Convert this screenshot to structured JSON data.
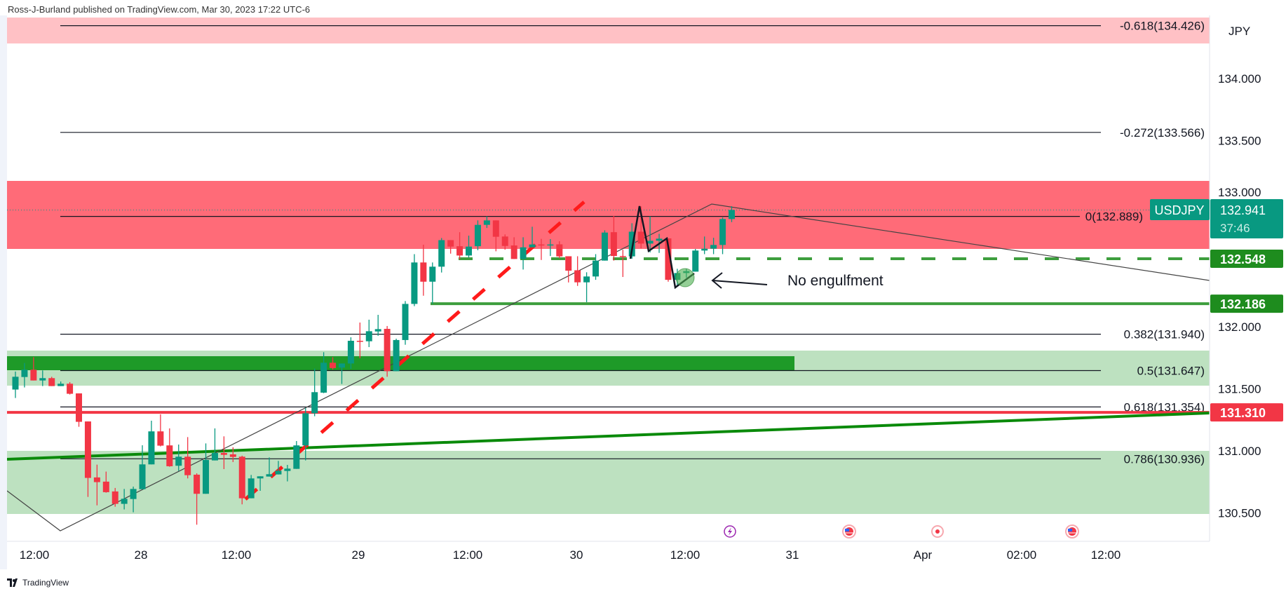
{
  "header": {
    "text": "Ross-J-Burland published on TradingView.com, Mar 30, 2023 17:22 UTC-6"
  },
  "footer": {
    "brand": "TradingView"
  },
  "colors": {
    "up": "#089981",
    "down": "#f23645",
    "resistance_zone": "#ff6b78",
    "top_zone": "#ffc1c5",
    "support_zone": "#bde1c0",
    "support_dark": "#1e9a28",
    "level_green": "#3d9e3d",
    "red_level": "#f23645"
  },
  "chart_data": {
    "type": "candlestick",
    "symbol": "USDJPY",
    "currency_label": "JPY",
    "last_price": "132.941",
    "countdown": "37:46",
    "ylim": [
      130.3,
      134.55
    ],
    "y_ticks": [
      "134.000",
      "133.500",
      "133.000",
      "132.000",
      "131.500",
      "131.000",
      "130.500"
    ],
    "y_tick_values": [
      134.0,
      133.5,
      133.0,
      132.0,
      131.5,
      131.0,
      130.5
    ],
    "x_ticks": [
      "12:00",
      "28",
      "12:00",
      "29",
      "12:00",
      "30",
      "12:00",
      "31",
      "Apr",
      "02:00",
      "12:00"
    ],
    "price_labels": [
      {
        "value": "132.548",
        "price": 132.548,
        "color": "#1e8c1e"
      },
      {
        "value": "132.186",
        "price": 132.186,
        "color": "#1e8c1e"
      },
      {
        "value": "131.310",
        "price": 131.31,
        "color": "#f23645"
      }
    ],
    "fib_levels": [
      {
        "label": "-0.618(134.426)",
        "price": 134.426
      },
      {
        "label": "-0.272(133.566)",
        "price": 133.566
      },
      {
        "label": "0(132.889)",
        "price": 132.889
      },
      {
        "label": "0.382(131.940)",
        "price": 131.94
      },
      {
        "label": "0.5(131.647)",
        "price": 131.647
      },
      {
        "label": "0.618(131.354)",
        "price": 131.354
      },
      {
        "label": "0.786(130.936)",
        "price": 130.936
      }
    ],
    "annotation": "No engulfment",
    "candles_ohlc": [
      [
        131.494,
        131.639,
        131.426,
        131.597
      ],
      [
        131.595,
        131.708,
        131.511,
        131.654
      ],
      [
        131.654,
        131.755,
        131.567,
        131.567
      ],
      [
        131.567,
        131.648,
        131.522,
        131.586
      ],
      [
        131.586,
        131.597,
        131.522,
        131.522
      ],
      [
        131.522,
        131.559,
        131.522,
        131.541
      ],
      [
        131.541,
        131.554,
        131.454,
        131.46
      ],
      [
        131.463,
        131.463,
        131.194,
        131.234
      ],
      [
        131.237,
        131.237,
        130.629,
        130.782
      ],
      [
        130.786,
        130.889,
        130.561,
        130.748
      ],
      [
        130.752,
        130.833,
        130.663,
        130.667
      ],
      [
        130.673,
        130.701,
        130.55,
        130.573
      ],
      [
        130.573,
        130.693,
        130.528,
        130.614
      ],
      [
        130.612,
        130.712,
        130.505,
        130.693
      ],
      [
        130.691,
        131.045,
        130.691,
        130.891
      ],
      [
        130.891,
        131.243,
        130.891,
        131.157
      ],
      [
        131.157,
        131.294,
        131.036,
        131.042
      ],
      [
        131.044,
        131.181,
        130.872,
        130.876
      ],
      [
        130.88,
        131.051,
        130.838,
        130.953
      ],
      [
        130.953,
        131.111,
        130.778,
        130.804
      ],
      [
        130.808,
        130.819,
        130.405,
        130.654
      ],
      [
        130.654,
        131.06,
        130.654,
        130.927
      ],
      [
        130.923,
        131.181,
        130.923,
        130.983
      ],
      [
        130.983,
        131.117,
        130.853,
        130.968
      ],
      [
        130.972,
        131.029,
        130.91,
        130.951
      ],
      [
        130.953,
        130.961,
        130.569,
        130.618
      ],
      [
        130.618,
        130.806,
        130.618,
        130.778
      ],
      [
        130.778,
        130.795,
        130.678,
        130.795
      ],
      [
        130.793,
        130.947,
        130.793,
        130.812
      ],
      [
        130.81,
        130.919,
        130.81,
        130.84
      ],
      [
        130.838,
        130.887,
        130.754,
        130.857
      ],
      [
        130.855,
        131.079,
        130.855,
        131.044
      ],
      [
        131.044,
        131.347,
        130.923,
        131.303
      ],
      [
        131.303,
        131.663,
        131.279,
        131.473
      ],
      [
        131.469,
        131.795,
        131.465,
        131.71
      ],
      [
        131.71,
        131.755,
        131.654,
        131.667
      ],
      [
        131.671,
        131.704,
        131.539,
        131.704
      ],
      [
        131.704,
        131.915,
        131.661,
        131.887
      ],
      [
        131.887,
        132.034,
        131.746,
        131.883
      ],
      [
        131.883,
        132.057,
        131.836,
        131.964
      ],
      [
        131.962,
        132.096,
        131.927,
        131.981
      ],
      [
        131.983,
        132.006,
        131.597,
        131.642
      ],
      [
        131.642,
        131.904,
        131.642,
        131.893
      ],
      [
        131.893,
        132.207,
        131.855,
        132.184
      ],
      [
        132.184,
        132.585,
        132.166,
        132.518
      ],
      [
        132.518,
        132.661,
        132.25,
        132.363
      ],
      [
        132.363,
        132.518,
        132.184,
        132.484
      ],
      [
        132.484,
        132.715,
        132.437,
        132.698
      ],
      [
        132.698,
        132.698,
        132.589,
        132.646
      ],
      [
        132.649,
        132.762,
        132.542,
        132.574
      ],
      [
        132.574,
        132.734,
        132.557,
        132.646
      ],
      [
        132.649,
        132.857,
        132.617,
        132.821
      ],
      [
        132.821,
        132.89,
        132.796,
        132.857
      ],
      [
        132.857,
        132.857,
        132.608,
        132.725
      ],
      [
        132.727,
        132.744,
        132.621,
        132.651
      ],
      [
        132.655,
        132.721,
        132.546,
        132.546
      ],
      [
        132.546,
        132.721,
        132.461,
        132.64
      ],
      [
        132.64,
        132.806,
        132.64,
        132.663
      ],
      [
        132.663,
        132.708,
        132.538,
        132.659
      ],
      [
        132.659,
        132.706,
        132.57,
        132.663
      ],
      [
        132.664,
        132.689,
        132.552,
        132.567
      ],
      [
        132.568,
        132.568,
        132.357,
        132.452
      ],
      [
        132.455,
        132.568,
        132.329,
        132.358
      ],
      [
        132.358,
        132.439,
        132.198,
        132.405
      ],
      [
        132.405,
        132.585,
        132.378,
        132.533
      ],
      [
        132.533,
        132.777,
        132.533,
        132.759
      ],
      [
        132.762,
        132.894,
        132.533,
        132.57
      ],
      [
        132.57,
        132.621,
        132.401,
        132.567
      ],
      [
        132.567,
        132.834,
        132.548,
        132.766
      ],
      [
        132.766,
        132.97,
        132.632,
        132.67
      ],
      [
        132.67,
        132.89,
        132.599,
        132.693
      ],
      [
        132.693,
        132.749,
        132.595,
        132.71
      ],
      [
        132.712,
        132.712,
        132.363,
        132.378
      ],
      [
        132.378,
        132.467,
        132.335,
        132.433
      ],
      [
        132.433,
        132.467,
        132.395,
        132.448
      ],
      [
        132.444,
        132.627,
        132.444,
        132.614
      ],
      [
        132.614,
        132.727,
        132.585,
        132.629
      ],
      [
        132.629,
        132.717,
        132.585,
        132.659
      ],
      [
        132.659,
        132.881,
        132.585,
        132.868
      ],
      [
        132.868,
        132.971,
        132.843,
        132.941
      ]
    ],
    "event_icons": [
      "lightning-event-icon",
      "us-flag-event-icon",
      "news-dot-event-icon",
      "us-flag-event-icon"
    ]
  }
}
